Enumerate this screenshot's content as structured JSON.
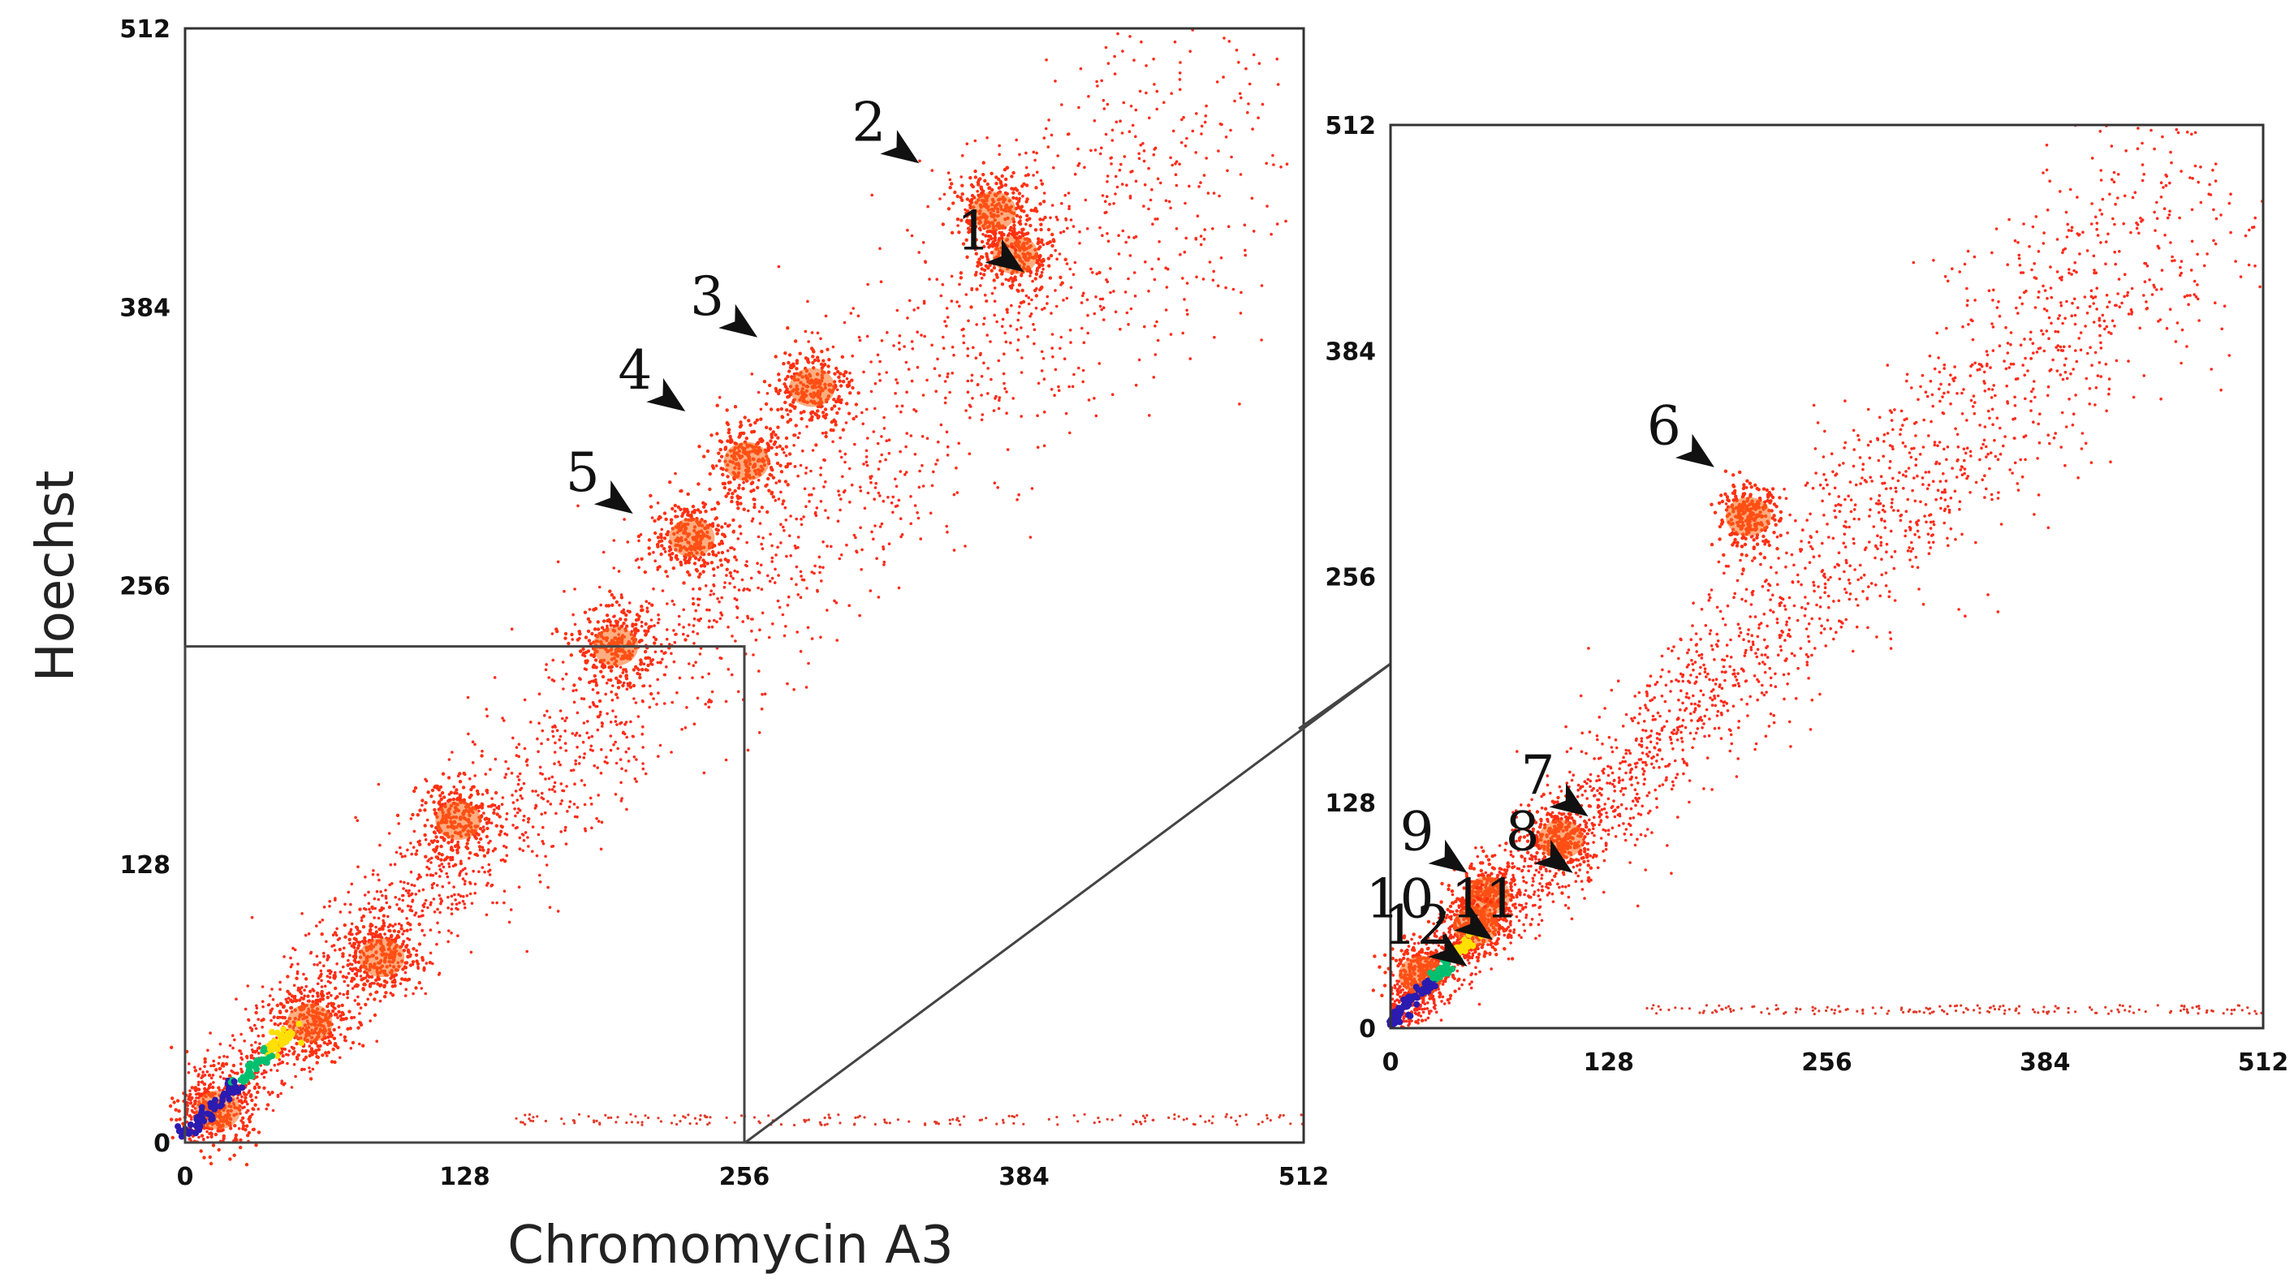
{
  "chart_data": [
    {
      "type": "scatter",
      "panel": "left",
      "xlabel": "Chromomycin A3",
      "ylabel": "Hoechst",
      "xlim": [
        0,
        512
      ],
      "ylim": [
        0,
        512
      ],
      "xticks": [
        "0",
        "128",
        "256",
        "384",
        "512"
      ],
      "yticks": [
        "0",
        "128",
        "256",
        "384",
        "512"
      ],
      "zoom_box": {
        "x": [
          0,
          256
        ],
        "y": [
          0,
          228
        ]
      },
      "density_colormap": [
        "#ffd0d0",
        "#ff2a00",
        "#ffff00",
        "#00ff80",
        "#2b1bb0"
      ],
      "clusters": [
        {
          "label": "1",
          "x": 380,
          "y": 408
        },
        {
          "label": "2",
          "x": 370,
          "y": 428
        },
        {
          "label": "3",
          "x": 287,
          "y": 347
        },
        {
          "label": "4",
          "x": 257,
          "y": 313
        },
        {
          "label": "5",
          "x": 232,
          "y": 278
        },
        {
          "label": "",
          "x": 197,
          "y": 228
        },
        {
          "label": "",
          "x": 125,
          "y": 148
        },
        {
          "label": "",
          "x": 90,
          "y": 85
        },
        {
          "label": "",
          "x": 57,
          "y": 55
        },
        {
          "label": "",
          "x": 15,
          "y": 15
        }
      ],
      "annotations": [
        {
          "label": "1",
          "x": 384,
          "y": 400
        },
        {
          "label": "2",
          "x": 336,
          "y": 450
        },
        {
          "label": "3",
          "x": 262,
          "y": 370
        },
        {
          "label": "4",
          "x": 229,
          "y": 336
        },
        {
          "label": "5",
          "x": 205,
          "y": 289
        }
      ]
    },
    {
      "type": "scatter",
      "panel": "right",
      "xlabel": "",
      "ylabel": "",
      "xlim": [
        0,
        512
      ],
      "ylim": [
        0,
        512
      ],
      "xticks": [
        "0",
        "128",
        "256",
        "384",
        "512"
      ],
      "yticks": [
        "0",
        "128",
        "256",
        "384",
        "512"
      ],
      "clusters": [
        {
          "label": "6",
          "x": 210,
          "y": 290
        },
        {
          "label": "7/8",
          "x": 100,
          "y": 107
        },
        {
          "label": "9",
          "x": 57,
          "y": 75
        },
        {
          "label": "10,11",
          "x": 50,
          "y": 58
        },
        {
          "label": "12",
          "x": 18,
          "y": 30
        }
      ],
      "annotations": [
        {
          "label": "6",
          "x": 190,
          "y": 318
        },
        {
          "label": "7",
          "x": 116,
          "y": 120
        },
        {
          "label": "8",
          "x": 107,
          "y": 88
        },
        {
          "label": "9",
          "x": 45,
          "y": 88
        },
        {
          "label": "10,11",
          "x": 60,
          "y": 50
        },
        {
          "label": "12",
          "x": 45,
          "y": 35
        }
      ]
    }
  ]
}
